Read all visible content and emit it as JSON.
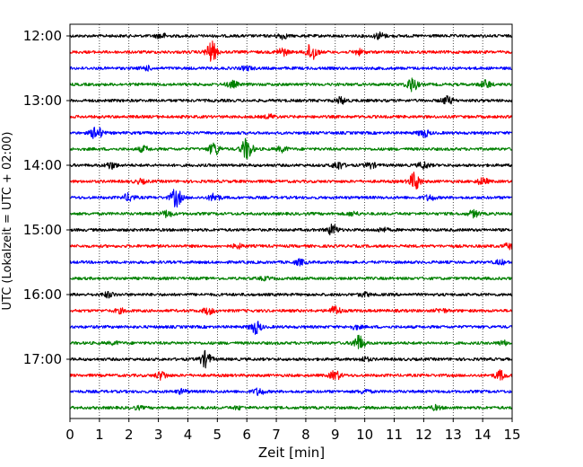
{
  "chart_data": {
    "type": "line",
    "title": "",
    "xlabel": "Zeit  [min]",
    "ylabel": "UTC (Lokalzeit = UTC + 02:00)",
    "xlim": [
      0,
      15
    ],
    "x_ticks": [
      "0",
      "1",
      "2",
      "3",
      "4",
      "5",
      "6",
      "7",
      "8",
      "9",
      "10",
      "11",
      "12",
      "13",
      "14",
      "15"
    ],
    "y_ticks": [
      "12:00",
      "13:00",
      "14:00",
      "15:00",
      "16:00",
      "17:00"
    ],
    "grid": {
      "x": "dotted",
      "y": "off"
    },
    "legend": "none",
    "series_colors": [
      "#000000",
      "#ff0000",
      "#0000ff",
      "#008000"
    ],
    "series": [
      {
        "start": "12:00",
        "color": "#000000",
        "bursts": [
          [
            3.1,
            0.4
          ],
          [
            7.2,
            0.4
          ],
          [
            10.5,
            0.5
          ]
        ]
      },
      {
        "start": "12:15",
        "color": "#ff0000",
        "bursts": [
          [
            4.8,
            1.6
          ],
          [
            7.2,
            0.6
          ],
          [
            8.2,
            1.4
          ],
          [
            9.8,
            0.4
          ]
        ]
      },
      {
        "start": "12:30",
        "color": "#0000ff",
        "bursts": [
          [
            2.6,
            0.3
          ],
          [
            6.0,
            0.3
          ]
        ]
      },
      {
        "start": "12:45",
        "color": "#008000",
        "bursts": [
          [
            5.5,
            0.5
          ],
          [
            11.6,
            1.1
          ],
          [
            14.1,
            0.6
          ]
        ]
      },
      {
        "start": "13:00",
        "color": "#000000",
        "bursts": [
          [
            9.2,
            0.5
          ],
          [
            12.8,
            0.6
          ]
        ]
      },
      {
        "start": "13:15",
        "color": "#ff0000",
        "bursts": [
          [
            6.8,
            0.3
          ]
        ]
      },
      {
        "start": "13:30",
        "color": "#0000ff",
        "bursts": [
          [
            0.9,
            1.1
          ],
          [
            12.0,
            0.6
          ]
        ]
      },
      {
        "start": "13:45",
        "color": "#008000",
        "bursts": [
          [
            2.5,
            0.4
          ],
          [
            4.9,
            1.0
          ],
          [
            6.0,
            1.7
          ],
          [
            7.2,
            0.4
          ]
        ]
      },
      {
        "start": "14:00",
        "color": "#000000",
        "bursts": [
          [
            1.4,
            0.5
          ],
          [
            9.1,
            0.6
          ],
          [
            10.2,
            0.4
          ],
          [
            12.0,
            0.5
          ]
        ]
      },
      {
        "start": "14:15",
        "color": "#ff0000",
        "bursts": [
          [
            2.4,
            0.3
          ],
          [
            11.7,
            1.4
          ],
          [
            14.0,
            0.5
          ]
        ]
      },
      {
        "start": "14:30",
        "color": "#0000ff",
        "bursts": [
          [
            2.0,
            0.6
          ],
          [
            3.6,
            1.4
          ],
          [
            4.9,
            0.6
          ],
          [
            12.2,
            0.4
          ]
        ]
      },
      {
        "start": "14:45",
        "color": "#008000",
        "bursts": [
          [
            3.3,
            0.5
          ],
          [
            9.6,
            0.3
          ],
          [
            13.7,
            0.5
          ]
        ]
      },
      {
        "start": "15:00",
        "color": "#000000",
        "bursts": [
          [
            8.9,
            0.8
          ],
          [
            10.6,
            0.3
          ]
        ]
      },
      {
        "start": "15:15",
        "color": "#ff0000",
        "bursts": [
          [
            5.7,
            0.3
          ],
          [
            14.9,
            0.4
          ]
        ]
      },
      {
        "start": "15:30",
        "color": "#0000ff",
        "bursts": [
          [
            7.8,
            0.4
          ],
          [
            14.6,
            0.3
          ]
        ]
      },
      {
        "start": "15:45",
        "color": "#008000",
        "bursts": [
          [
            6.6,
            0.2
          ]
        ]
      },
      {
        "start": "16:00",
        "color": "#000000",
        "bursts": [
          [
            1.3,
            0.4
          ],
          [
            10.0,
            0.3
          ]
        ]
      },
      {
        "start": "16:15",
        "color": "#ff0000",
        "bursts": [
          [
            1.7,
            0.3
          ],
          [
            4.7,
            0.5
          ],
          [
            9.0,
            0.7
          ],
          [
            12.6,
            0.3
          ]
        ]
      },
      {
        "start": "16:30",
        "color": "#0000ff",
        "bursts": [
          [
            6.3,
            1.0
          ],
          [
            9.7,
            0.3
          ]
        ]
      },
      {
        "start": "16:45",
        "color": "#008000",
        "bursts": [
          [
            1.5,
            0.2
          ],
          [
            9.8,
            1.2
          ],
          [
            14.7,
            0.3
          ]
        ]
      },
      {
        "start": "17:00",
        "color": "#000000",
        "bursts": [
          [
            4.6,
            1.2
          ],
          [
            10.0,
            0.3
          ]
        ]
      },
      {
        "start": "17:15",
        "color": "#ff0000",
        "bursts": [
          [
            3.1,
            0.6
          ],
          [
            9.0,
            0.7
          ],
          [
            14.6,
            0.7
          ]
        ]
      },
      {
        "start": "17:30",
        "color": "#0000ff",
        "bursts": [
          [
            3.8,
            0.3
          ],
          [
            6.4,
            0.5
          ],
          [
            10.0,
            0.3
          ]
        ]
      },
      {
        "start": "17:45",
        "color": "#008000",
        "bursts": [
          [
            2.3,
            0.2
          ],
          [
            5.7,
            0.2
          ],
          [
            12.4,
            0.3
          ]
        ]
      }
    ]
  }
}
